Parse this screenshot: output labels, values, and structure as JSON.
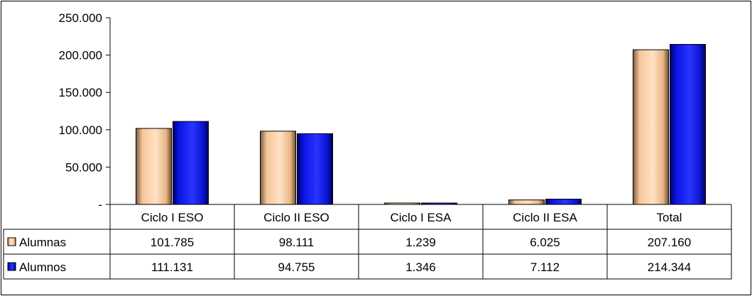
{
  "chart_data": {
    "type": "bar",
    "categories": [
      "Ciclo I ESO",
      "Ciclo II ESO",
      "Ciclo I ESA",
      "Ciclo II ESA",
      "Total"
    ],
    "series": [
      {
        "name": "Alumnas",
        "values": [
          101785,
          98111,
          1239,
          6025,
          207160
        ],
        "labels": [
          "101.785",
          "98.111",
          "1.239",
          "6.025",
          "207.160"
        ],
        "color": "#F5C59A"
      },
      {
        "name": "Alumnos",
        "values": [
          111131,
          94755,
          1346,
          7112,
          214344
        ],
        "labels": [
          "111.131",
          "94.755",
          "1.346",
          "7.112",
          "214.344"
        ],
        "color": "#0A14E6"
      }
    ],
    "ylim": [
      0,
      250000
    ],
    "yticks": [
      0,
      50000,
      100000,
      150000,
      200000,
      250000
    ],
    "ytick_labels": [
      "-",
      "50.000",
      "100.000",
      "150.000",
      "200.000",
      "250.000"
    ],
    "grid": false,
    "legend": "data-table"
  }
}
